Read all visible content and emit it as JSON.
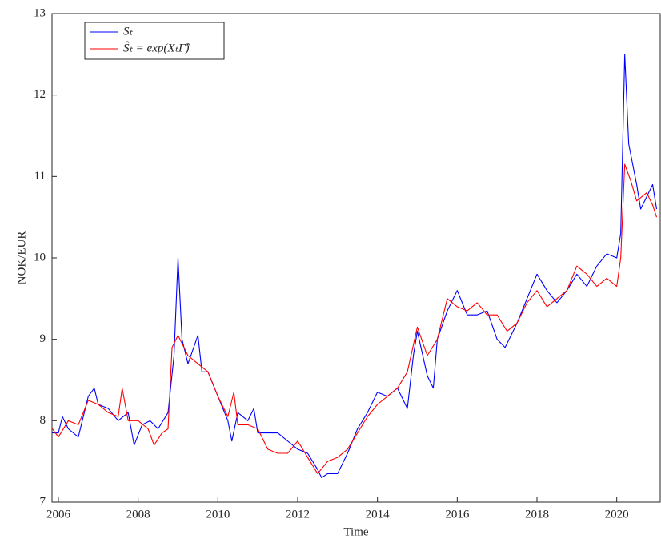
{
  "chart_data": {
    "type": "line",
    "xlabel": "Time",
    "ylabel": "NOK/EUR",
    "xlim": [
      2005.84,
      2021.09
    ],
    "ylim": [
      7,
      13
    ],
    "xticks": [
      2006,
      2008,
      2010,
      2012,
      2014,
      2016,
      2018,
      2020
    ],
    "yticks": [
      7,
      8,
      9,
      10,
      11,
      12,
      13
    ],
    "grid": false,
    "legend": "upper left",
    "series": [
      {
        "name": "Sₜ",
        "color": "#0000ff",
        "x": [
          2005.85,
          2006.0,
          2006.1,
          2006.25,
          2006.5,
          2006.75,
          2006.9,
          2007.0,
          2007.25,
          2007.5,
          2007.75,
          2007.9,
          2008.1,
          2008.3,
          2008.5,
          2008.75,
          2008.9,
          2009.0,
          2009.1,
          2009.25,
          2009.5,
          2009.6,
          2009.75,
          2010.0,
          2010.25,
          2010.35,
          2010.5,
          2010.75,
          2010.9,
          2011.0,
          2011.25,
          2011.5,
          2011.75,
          2012.0,
          2012.25,
          2012.5,
          2012.6,
          2012.75,
          2013.0,
          2013.25,
          2013.5,
          2013.75,
          2014.0,
          2014.25,
          2014.5,
          2014.75,
          2014.9,
          2015.0,
          2015.25,
          2015.4,
          2015.5,
          2015.75,
          2016.0,
          2016.25,
          2016.5,
          2016.75,
          2017.0,
          2017.2,
          2017.5,
          2017.75,
          2018.0,
          2018.25,
          2018.5,
          2018.75,
          2019.0,
          2019.25,
          2019.5,
          2019.75,
          2020.0,
          2020.1,
          2020.2,
          2020.3,
          2020.5,
          2020.6,
          2020.75,
          2020.9,
          2021.0
        ],
        "values": [
          7.85,
          7.85,
          8.05,
          7.9,
          7.8,
          8.3,
          8.4,
          8.2,
          8.15,
          8.0,
          8.1,
          7.7,
          7.95,
          8.0,
          7.9,
          8.1,
          8.8,
          10.0,
          9.0,
          8.7,
          9.05,
          8.6,
          8.6,
          8.3,
          8.0,
          7.75,
          8.1,
          8.0,
          8.15,
          7.85,
          7.85,
          7.85,
          7.75,
          7.65,
          7.6,
          7.4,
          7.3,
          7.35,
          7.35,
          7.6,
          7.9,
          8.1,
          8.35,
          8.3,
          8.4,
          8.15,
          8.8,
          9.1,
          8.55,
          8.4,
          9.0,
          9.35,
          9.6,
          9.3,
          9.3,
          9.35,
          9.0,
          8.9,
          9.2,
          9.5,
          9.8,
          9.6,
          9.45,
          9.6,
          9.8,
          9.65,
          9.9,
          10.05,
          10.0,
          10.3,
          12.5,
          11.4,
          10.9,
          10.6,
          10.75,
          10.9,
          10.6
        ]
      },
      {
        "name": "Ŝₜ = exp(XₜΓ̂)",
        "color": "#ff0000",
        "x": [
          2005.85,
          2006.0,
          2006.25,
          2006.5,
          2006.75,
          2007.0,
          2007.25,
          2007.5,
          2007.6,
          2007.75,
          2008.0,
          2008.25,
          2008.4,
          2008.6,
          2008.75,
          2008.85,
          2009.0,
          2009.25,
          2009.5,
          2009.75,
          2010.0,
          2010.25,
          2010.4,
          2010.5,
          2010.75,
          2011.0,
          2011.25,
          2011.5,
          2011.75,
          2012.0,
          2012.25,
          2012.5,
          2012.75,
          2013.0,
          2013.25,
          2013.5,
          2013.75,
          2014.0,
          2014.25,
          2014.5,
          2014.75,
          2015.0,
          2015.25,
          2015.5,
          2015.75,
          2016.0,
          2016.25,
          2016.5,
          2016.75,
          2017.0,
          2017.25,
          2017.5,
          2017.75,
          2018.0,
          2018.25,
          2018.5,
          2018.75,
          2019.0,
          2019.25,
          2019.5,
          2019.75,
          2020.0,
          2020.1,
          2020.2,
          2020.35,
          2020.5,
          2020.75,
          2020.9,
          2021.0
        ],
        "values": [
          7.9,
          7.8,
          8.0,
          7.95,
          8.25,
          8.2,
          8.1,
          8.05,
          8.4,
          8.0,
          8.0,
          7.9,
          7.7,
          7.85,
          7.9,
          8.9,
          9.05,
          8.8,
          8.7,
          8.6,
          8.3,
          8.05,
          8.35,
          7.95,
          7.95,
          7.9,
          7.65,
          7.6,
          7.6,
          7.75,
          7.55,
          7.35,
          7.5,
          7.55,
          7.65,
          7.85,
          8.05,
          8.2,
          8.3,
          8.4,
          8.6,
          9.15,
          8.8,
          9.0,
          9.5,
          9.4,
          9.35,
          9.45,
          9.3,
          9.3,
          9.1,
          9.2,
          9.45,
          9.6,
          9.4,
          9.5,
          9.6,
          9.9,
          9.8,
          9.65,
          9.75,
          9.65,
          10.0,
          11.15,
          10.95,
          10.7,
          10.8,
          10.65,
          10.5
        ]
      }
    ]
  }
}
